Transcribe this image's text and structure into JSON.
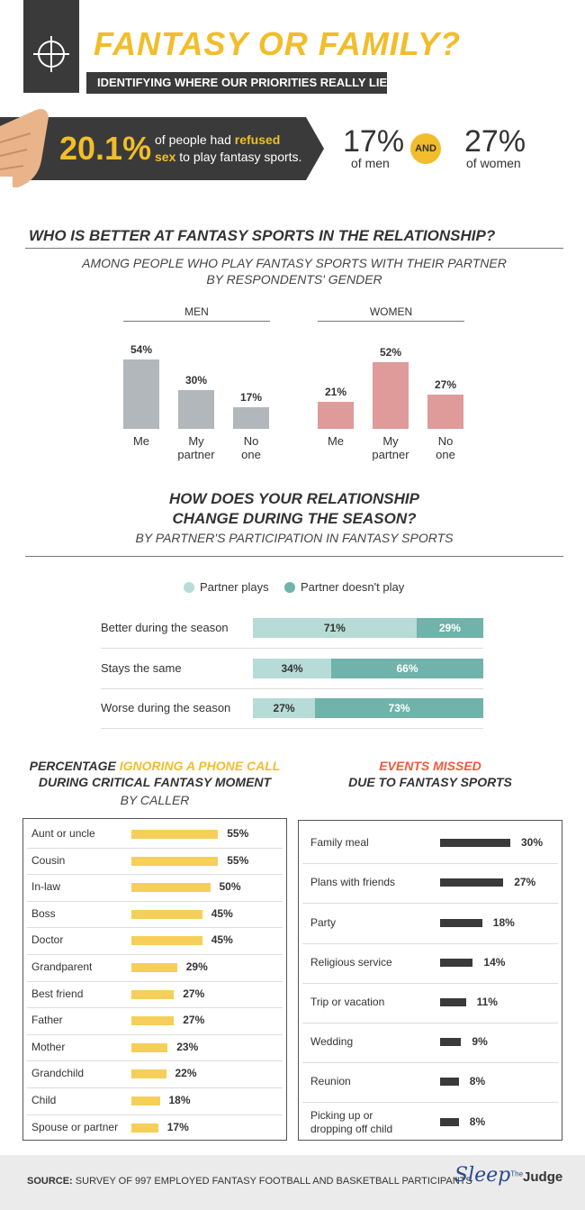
{
  "header": {
    "title": "FANTASY OR FAMILY?",
    "subtitle": "IDENTIFYING WHERE OUR PRIORITIES REALLY LIE"
  },
  "refusal": {
    "big_stat": "20.1%",
    "text_line1_pre": "of people had ",
    "text_line1_hl": "refused",
    "text_line2_hl": "sex",
    "text_line2_post": " to play fantasy sports.",
    "men_pct": "17%",
    "men_label": "of men",
    "and_label": "AND",
    "women_pct": "27%",
    "women_label": "of women"
  },
  "colors": {
    "accent": "#f2bd2b",
    "dark": "#3a3a3a",
    "men_bar": "#b2b7bb",
    "women_bar": "#df9a9a",
    "partner_plays": "#b7dbd6",
    "partner_doesnt": "#6fb3ab",
    "phone_bar": "#f6cf5a",
    "events_bar": "#3a3a3a"
  },
  "section1": {
    "title": "WHO IS BETTER AT FANTASY SPORTS IN THE RELATIONSHIP?",
    "subtitle_line1": "AMONG PEOPLE WHO PLAY FANTASY SPORTS WITH THEIR PARTNER",
    "subtitle_line2": "BY RESPONDENTS' GENDER"
  },
  "section2": {
    "title_line1": "HOW DOES YOUR RELATIONSHIP",
    "title_line2": "CHANGE DURING THE SEASON?",
    "subtitle": "BY PARTNER'S PARTICIPATION IN FANTASY SPORTS"
  },
  "section3": {
    "title_hl_pre": "PERCENTAGE ",
    "title_hl": "IGNORING A PHONE CALL",
    "title_line2": "DURING CRITICAL FANTASY MOMENT",
    "subtitle": "BY CALLER"
  },
  "section4": {
    "title_line1": "EVENTS MISSED",
    "title_line2": "DUE TO FANTASY SPORTS"
  },
  "chart_data": [
    {
      "type": "bar",
      "title": "MEN",
      "categories": [
        "Me",
        "My partner",
        "No one"
      ],
      "values": [
        54,
        30,
        17
      ],
      "labels": [
        "54%",
        "30%",
        "17%"
      ]
    },
    {
      "type": "bar",
      "title": "WOMEN",
      "categories": [
        "Me",
        "My partner",
        "No one"
      ],
      "values": [
        21,
        52,
        27
      ],
      "labels": [
        "21%",
        "52%",
        "27%"
      ]
    },
    {
      "type": "bar",
      "stacked": true,
      "orientation": "horizontal",
      "categories": [
        "Better during the season",
        "Stays the same",
        "Worse during the season"
      ],
      "series": [
        {
          "name": "Partner plays",
          "values": [
            71,
            34,
            27
          ],
          "labels": [
            "71%",
            "34%",
            "27%"
          ]
        },
        {
          "name": "Partner doesn't play",
          "values": [
            29,
            66,
            73
          ],
          "labels": [
            "29%",
            "66%",
            "73%"
          ]
        }
      ],
      "legend": "top"
    },
    {
      "type": "bar",
      "orientation": "horizontal",
      "categories": [
        "Aunt or uncle",
        "Cousin",
        "In-law",
        "Boss",
        "Doctor",
        "Grandparent",
        "Best friend",
        "Father",
        "Mother",
        "Grandchild",
        "Child",
        "Spouse or partner"
      ],
      "values": [
        55,
        55,
        50,
        45,
        45,
        29,
        27,
        27,
        23,
        22,
        18,
        17
      ],
      "labels": [
        "55%",
        "55%",
        "50%",
        "45%",
        "45%",
        "29%",
        "27%",
        "27%",
        "23%",
        "22%",
        "18%",
        "17%"
      ]
    },
    {
      "type": "bar",
      "orientation": "horizontal",
      "categories": [
        "Family meal",
        "Plans with friends",
        "Party",
        "Religious service",
        "Trip or vacation",
        "Wedding",
        "Reunion",
        "Picking up or dropping off child"
      ],
      "values": [
        30,
        27,
        18,
        14,
        11,
        9,
        8,
        8
      ],
      "labels": [
        "30%",
        "27%",
        "18%",
        "14%",
        "11%",
        "9%",
        "8%",
        "8%"
      ]
    }
  ],
  "footer": {
    "source_label": "SOURCE:",
    "source_text": " SURVEY OF 997 EMPLOYED FANTASY FOOTBALL AND BASKETBALL PARTICIPANTS",
    "brand_script": "Sleep",
    "brand_small": "The",
    "brand_word": "Judge"
  }
}
